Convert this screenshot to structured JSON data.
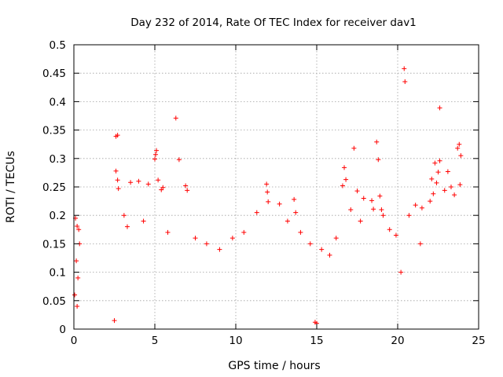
{
  "chart_data": {
    "type": "scatter",
    "title": "Day 232 of 2014, Rate Of TEC Index for receiver dav1",
    "xlabel": "GPS time / hours",
    "ylabel": "ROTI / TECUs",
    "xlim": [
      0,
      25
    ],
    "ylim": [
      0,
      0.5
    ],
    "x_ticks": [
      0,
      5,
      10,
      15,
      20,
      25
    ],
    "x_tick_labels": [
      "0",
      "5",
      "10",
      "15",
      "20",
      "25"
    ],
    "y_ticks": [
      0,
      0.05,
      0.1,
      0.15,
      0.2,
      0.25,
      0.3,
      0.35,
      0.4,
      0.45,
      0.5
    ],
    "y_tick_labels": [
      "0",
      "0.05",
      "0.1",
      "0.15",
      "0.2",
      "0.25",
      "0.3",
      "0.35",
      "0.4",
      "0.45",
      "0.5"
    ],
    "grid": true,
    "legend": "none",
    "marker": "plus",
    "series_color": "#ff0000",
    "series": [
      {
        "x": [
          20.4,
          20.45,
          22.6,
          6.3,
          2.7,
          2.6,
          17.3,
          18.7,
          18.8,
          23.8,
          23.7,
          23.9,
          5.1,
          5.05,
          5.0,
          6.5,
          22.3,
          22.6,
          22.5,
          23.1,
          16.7,
          16.8,
          22.9,
          22.1,
          22.4,
          2.6,
          2.7,
          2.75,
          3.5,
          4.0,
          4.6,
          5.4,
          5.2,
          5.5,
          6.9,
          7.0,
          11.9,
          11.95,
          12.0,
          13.6,
          13.7,
          16.6,
          17.5,
          17.9,
          18.9,
          19.0,
          19.1,
          18.4,
          18.5,
          21.1,
          21.5,
          22.0,
          22.2,
          23.3,
          23.5,
          23.85,
          0.1,
          0.2,
          0.3,
          0.15,
          0.25,
          0.05,
          0.35,
          3.1,
          3.3,
          4.3,
          5.8,
          7.5,
          8.2,
          9.0,
          9.8,
          10.5,
          11.3,
          12.7,
          13.2,
          14.0,
          14.6,
          15.3,
          15.8,
          16.2,
          17.1,
          17.7,
          19.5,
          19.9,
          20.7,
          21.4,
          20.2,
          0.2,
          2.5,
          14.9,
          15.0
        ],
        "y": [
          0.458,
          0.435,
          0.389,
          0.371,
          0.341,
          0.339,
          0.318,
          0.329,
          0.298,
          0.325,
          0.318,
          0.305,
          0.314,
          0.307,
          0.299,
          0.298,
          0.292,
          0.296,
          0.276,
          0.277,
          0.284,
          0.263,
          0.244,
          0.264,
          0.257,
          0.278,
          0.262,
          0.247,
          0.258,
          0.26,
          0.255,
          0.245,
          0.262,
          0.249,
          0.252,
          0.244,
          0.255,
          0.241,
          0.224,
          0.228,
          0.205,
          0.252,
          0.243,
          0.23,
          0.234,
          0.21,
          0.2,
          0.226,
          0.211,
          0.218,
          0.213,
          0.225,
          0.238,
          0.25,
          0.236,
          0.254,
          0.195,
          0.181,
          0.175,
          0.12,
          0.09,
          0.06,
          0.15,
          0.2,
          0.18,
          0.19,
          0.17,
          0.16,
          0.15,
          0.14,
          0.16,
          0.17,
          0.205,
          0.22,
          0.19,
          0.17,
          0.15,
          0.14,
          0.13,
          0.16,
          0.21,
          0.19,
          0.175,
          0.165,
          0.2,
          0.15,
          0.1,
          0.04,
          0.015,
          0.012,
          0.01
        ]
      }
    ]
  }
}
